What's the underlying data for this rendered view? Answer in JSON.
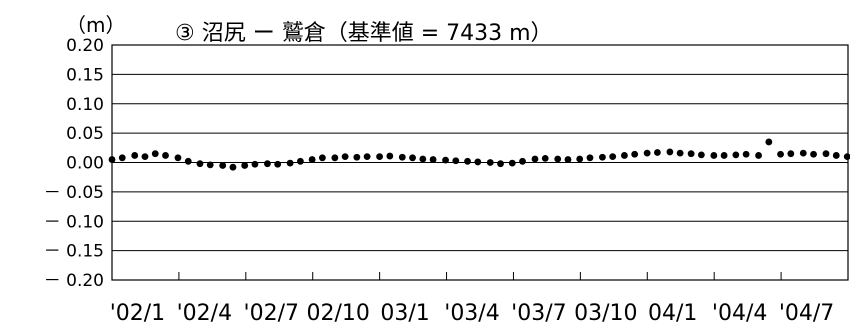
{
  "chart_data": {
    "type": "scatter",
    "title": "③ 沼尻 ー 鷲倉（基準値 = 7433 m）",
    "unit": "（m）",
    "ylim": [
      -0.2,
      0.2
    ],
    "y_ticks": [
      0.2,
      0.15,
      0.1,
      0.05,
      0.0,
      -0.05,
      -0.1,
      -0.15,
      -0.2
    ],
    "y_tick_labels": [
      "0.20",
      "0.15",
      "0.10",
      "0.05",
      "0.00",
      "－ 0.05",
      "－ 0.10",
      "－ 0.15",
      "－ 0.20"
    ],
    "x_tick_labels": [
      "'02/1",
      "'02/4",
      "'02/7",
      "02/10",
      "03/1",
      "'03/4",
      "'03/7",
      "03/10",
      "04/1",
      "'04/4",
      "'04/7"
    ],
    "xlim": [
      "2002-01-01",
      "2004-10-01"
    ],
    "grid": true,
    "series": [
      {
        "points": [
          {
            "x": "2002-01-01",
            "y": 0.005
          },
          {
            "x": "2002-01-15",
            "y": 0.008
          },
          {
            "x": "2002-02-01",
            "y": 0.012
          },
          {
            "x": "2002-02-15",
            "y": 0.01
          },
          {
            "x": "2002-03-01",
            "y": 0.015
          },
          {
            "x": "2002-03-15",
            "y": 0.012
          },
          {
            "x": "2002-04-01",
            "y": 0.008
          },
          {
            "x": "2002-04-15",
            "y": 0.002
          },
          {
            "x": "2002-05-01",
            "y": -0.002
          },
          {
            "x": "2002-05-15",
            "y": -0.004
          },
          {
            "x": "2002-06-01",
            "y": -0.005
          },
          {
            "x": "2002-06-15",
            "y": -0.008
          },
          {
            "x": "2002-07-01",
            "y": -0.005
          },
          {
            "x": "2002-07-15",
            "y": -0.003
          },
          {
            "x": "2002-08-01",
            "y": -0.002
          },
          {
            "x": "2002-08-15",
            "y": -0.003
          },
          {
            "x": "2002-09-01",
            "y": -0.001
          },
          {
            "x": "2002-09-15",
            "y": 0.002
          },
          {
            "x": "2002-10-01",
            "y": 0.005
          },
          {
            "x": "2002-10-15",
            "y": 0.008
          },
          {
            "x": "2002-11-01",
            "y": 0.008
          },
          {
            "x": "2002-11-15",
            "y": 0.01
          },
          {
            "x": "2002-12-01",
            "y": 0.009
          },
          {
            "x": "2002-12-15",
            "y": 0.01
          },
          {
            "x": "2003-01-01",
            "y": 0.01
          },
          {
            "x": "2003-01-15",
            "y": 0.011
          },
          {
            "x": "2003-02-01",
            "y": 0.009
          },
          {
            "x": "2003-02-15",
            "y": 0.008
          },
          {
            "x": "2003-03-01",
            "y": 0.006
          },
          {
            "x": "2003-03-15",
            "y": 0.005
          },
          {
            "x": "2003-04-01",
            "y": 0.004
          },
          {
            "x": "2003-04-15",
            "y": 0.003
          },
          {
            "x": "2003-05-01",
            "y": 0.002
          },
          {
            "x": "2003-05-15",
            "y": 0.001
          },
          {
            "x": "2003-06-01",
            "y": 0.0
          },
          {
            "x": "2003-06-15",
            "y": -0.002
          },
          {
            "x": "2003-07-01",
            "y": -0.001
          },
          {
            "x": "2003-07-15",
            "y": 0.002
          },
          {
            "x": "2003-08-01",
            "y": 0.006
          },
          {
            "x": "2003-08-15",
            "y": 0.007
          },
          {
            "x": "2003-09-01",
            "y": 0.006
          },
          {
            "x": "2003-09-15",
            "y": 0.005
          },
          {
            "x": "2003-10-01",
            "y": 0.006
          },
          {
            "x": "2003-10-15",
            "y": 0.008
          },
          {
            "x": "2003-11-01",
            "y": 0.009
          },
          {
            "x": "2003-11-15",
            "y": 0.01
          },
          {
            "x": "2003-12-01",
            "y": 0.012
          },
          {
            "x": "2003-12-15",
            "y": 0.014
          },
          {
            "x": "2004-01-01",
            "y": 0.016
          },
          {
            "x": "2004-01-15",
            "y": 0.017
          },
          {
            "x": "2004-02-01",
            "y": 0.018
          },
          {
            "x": "2004-02-15",
            "y": 0.016
          },
          {
            "x": "2004-03-01",
            "y": 0.015
          },
          {
            "x": "2004-03-15",
            "y": 0.013
          },
          {
            "x": "2004-04-01",
            "y": 0.012
          },
          {
            "x": "2004-04-15",
            "y": 0.012
          },
          {
            "x": "2004-05-01",
            "y": 0.013
          },
          {
            "x": "2004-05-15",
            "y": 0.014
          },
          {
            "x": "2004-06-01",
            "y": 0.012
          },
          {
            "x": "2004-06-15",
            "y": 0.035
          },
          {
            "x": "2004-07-01",
            "y": 0.014
          },
          {
            "x": "2004-07-15",
            "y": 0.015
          },
          {
            "x": "2004-08-01",
            "y": 0.016
          },
          {
            "x": "2004-08-15",
            "y": 0.014
          },
          {
            "x": "2004-09-01",
            "y": 0.015
          },
          {
            "x": "2004-09-15",
            "y": 0.012
          },
          {
            "x": "2004-09-30",
            "y": 0.01
          }
        ]
      }
    ]
  }
}
